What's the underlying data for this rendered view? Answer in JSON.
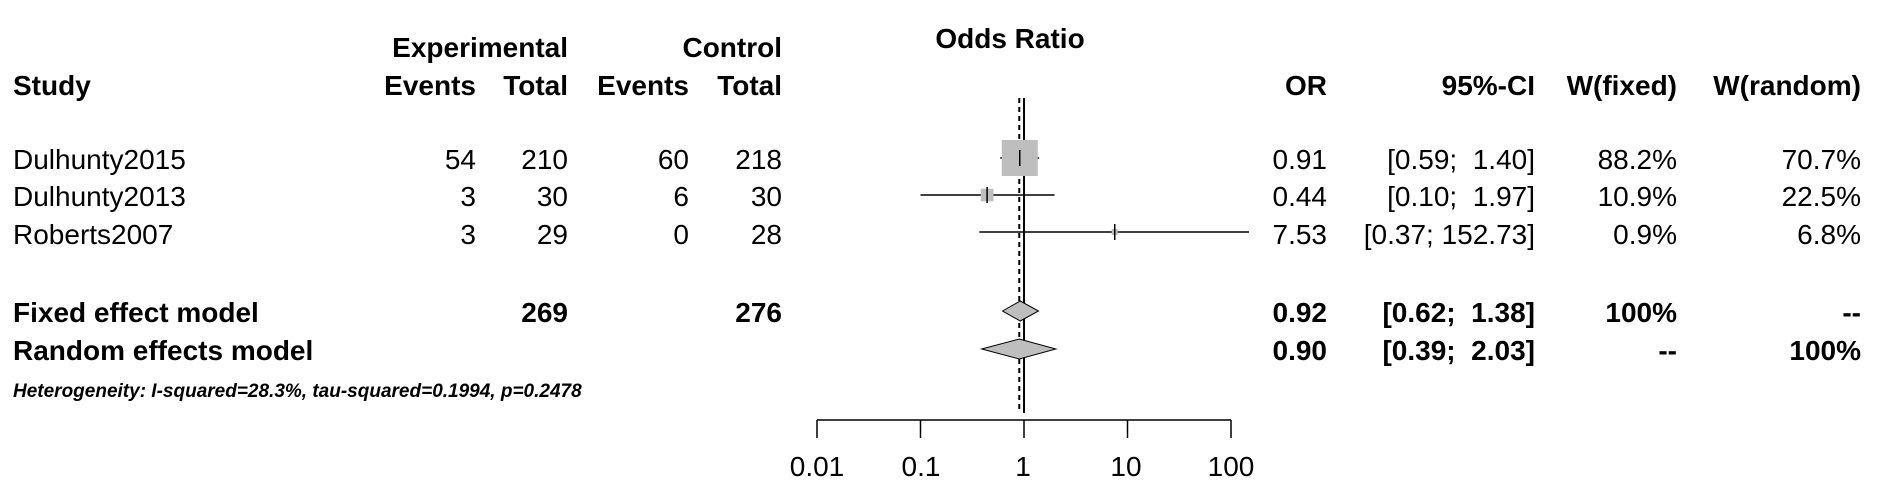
{
  "chart_data": {
    "type": "forest",
    "title": "Odds Ratio",
    "header": {
      "group_experimental": "Experimental",
      "group_control": "Control",
      "study": "Study",
      "events_e": "Events",
      "total_e": "Total",
      "events_c": "Events",
      "total_c": "Total",
      "or": "OR",
      "ci": "95%-CI",
      "w_fixed": "W(fixed)",
      "w_random": "W(random)"
    },
    "studies": [
      {
        "name": "Dulhunty2015",
        "events_e": "54",
        "total_e": "210",
        "events_c": "60",
        "total_c": "218",
        "or_text": "0.91",
        "ci_text": "[0.59;  1.40]",
        "w_fixed": "88.2%",
        "w_random": "70.7%",
        "or": 0.91,
        "lower": 0.59,
        "upper": 1.4,
        "weight": 0.882
      },
      {
        "name": "Dulhunty2013",
        "events_e": "3",
        "total_e": "30",
        "events_c": "6",
        "total_c": "30",
        "or_text": "0.44",
        "ci_text": "[0.10;  1.97]",
        "w_fixed": "10.9%",
        "w_random": "22.5%",
        "or": 0.44,
        "lower": 0.1,
        "upper": 1.97,
        "weight": 0.109
      },
      {
        "name": "Roberts2007",
        "events_e": "3",
        "total_e": "29",
        "events_c": "0",
        "total_c": "28",
        "or_text": "7.53",
        "ci_text": "[0.37; 152.73]",
        "w_fixed": "0.9%",
        "w_random": "6.8%",
        "or": 7.53,
        "lower": 0.37,
        "upper": 152.73,
        "weight": 0.009,
        "arrow_right": true
      }
    ],
    "models": [
      {
        "name": "Fixed effect model",
        "total_e": "269",
        "total_c": "276",
        "or_text": "0.92",
        "ci_text": "[0.62;  1.38]",
        "w_fixed": "100%",
        "w_random": "--",
        "or": 0.92,
        "lower": 0.62,
        "upper": 1.38
      },
      {
        "name": "Random effects model",
        "total_e": "",
        "total_c": "",
        "or_text": "0.90",
        "ci_text": "[0.39;  2.03]",
        "w_fixed": "--",
        "w_random": "100%",
        "or": 0.9,
        "lower": 0.39,
        "upper": 2.03
      }
    ],
    "heterogeneity": "Heterogeneity: I-squared=28.3%, tau-squared=0.1994, p=0.2478",
    "x_axis": {
      "scale": "log",
      "range": [
        0.01,
        100
      ],
      "ticks": [
        0.01,
        0.1,
        1,
        10,
        100
      ],
      "tick_labels": [
        "0.01",
        "0.1",
        "1",
        "10",
        "100"
      ]
    },
    "reference_line": 1,
    "pooled_line_random": 0.9
  },
  "colors": {
    "square": "#bebebe",
    "diamond": "#bebebe",
    "line": "#000000"
  }
}
